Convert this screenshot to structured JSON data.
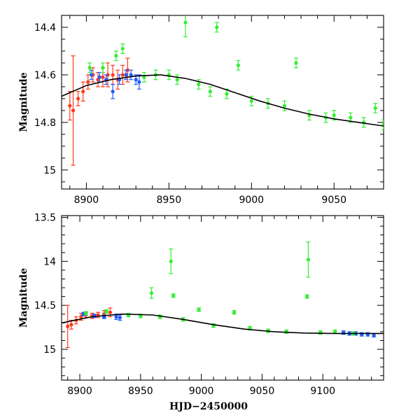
{
  "chart_data": [
    {
      "type": "scatter",
      "panel": "top",
      "xlabel": "",
      "ylabel": "Magnitude",
      "xlim": [
        8885,
        9080
      ],
      "ylim": [
        15.08,
        14.35
      ],
      "xticks": [
        8900,
        8950,
        9000,
        9050
      ],
      "yticks": [
        14.4,
        14.6,
        14.8,
        15
      ],
      "colors": {
        "red": "#ff3a1c",
        "blue": "#1f5cff",
        "green": "#33ee33",
        "model": "#000000"
      },
      "model_curve": {
        "x": [
          8885,
          8900,
          8915,
          8930,
          8945,
          8960,
          8975,
          8990,
          9005,
          9020,
          9035,
          9050,
          9065,
          9080
        ],
        "y": [
          14.69,
          14.645,
          14.62,
          14.605,
          14.6,
          14.615,
          14.64,
          14.675,
          14.71,
          14.74,
          14.765,
          14.785,
          14.8,
          14.815
        ]
      },
      "series": [
        {
          "name": "red",
          "color": "#ff3a1c",
          "x": [
            8890,
            8892,
            8895,
            8898,
            8901,
            8904,
            8907,
            8910,
            8913,
            8916,
            8919,
            8922,
            8925
          ],
          "y": [
            14.73,
            14.75,
            14.7,
            14.67,
            14.63,
            14.6,
            14.62,
            14.61,
            14.6,
            14.6,
            14.62,
            14.6,
            14.58
          ],
          "err": [
            0.06,
            0.23,
            0.03,
            0.04,
            0.03,
            0.03,
            0.03,
            0.04,
            0.05,
            0.04,
            0.04,
            0.04,
            0.05
          ]
        },
        {
          "name": "blue",
          "color": "#1f5cff",
          "x": [
            8903,
            8908,
            8912,
            8916,
            8920,
            8924,
            8927,
            8930,
            8932
          ],
          "y": [
            14.6,
            14.61,
            14.62,
            14.67,
            14.62,
            14.6,
            14.6,
            14.62,
            14.63
          ],
          "err": [
            0.02,
            0.02,
            0.02,
            0.03,
            0.02,
            0.02,
            0.02,
            0.02,
            0.03
          ]
        },
        {
          "name": "green",
          "color": "#33ee33",
          "x": [
            8902,
            8910,
            8918,
            8922,
            8935,
            8942,
            8950,
            8955,
            8960,
            8968,
            8975,
            8979,
            8985,
            8992,
            9000,
            9010,
            9020,
            9027,
            9035,
            9045,
            9050,
            9060,
            9068,
            9075,
            9080
          ],
          "y": [
            14.57,
            14.57,
            14.52,
            14.49,
            14.61,
            14.6,
            14.6,
            14.62,
            14.38,
            14.64,
            14.67,
            14.4,
            14.68,
            14.56,
            14.71,
            14.72,
            14.73,
            14.55,
            14.77,
            14.78,
            14.77,
            14.78,
            14.8,
            14.74,
            14.81
          ],
          "err": [
            0.02,
            0.02,
            0.02,
            0.02,
            0.02,
            0.02,
            0.02,
            0.02,
            0.06,
            0.02,
            0.02,
            0.02,
            0.02,
            0.02,
            0.02,
            0.02,
            0.02,
            0.02,
            0.02,
            0.02,
            0.02,
            0.02,
            0.02,
            0.02,
            0.02
          ]
        }
      ]
    },
    {
      "type": "scatter",
      "panel": "bottom",
      "xlabel": "HJD−2450000",
      "ylabel": "Magnitude",
      "xlim": [
        8885,
        9150
      ],
      "ylim": [
        15.35,
        13.48
      ],
      "xticks": [
        8900,
        8950,
        9000,
        9050,
        9100
      ],
      "yticks": [
        13.5,
        14,
        14.5,
        15
      ],
      "colors": {
        "red": "#ff3a1c",
        "blue": "#1f5cff",
        "green": "#33ee33",
        "model": "#000000"
      },
      "model_curve": {
        "x": [
          8885,
          8910,
          8935,
          8960,
          8985,
          9010,
          9035,
          9060,
          9085,
          9110,
          9130,
          9150
        ],
        "y": [
          14.7,
          14.63,
          14.6,
          14.61,
          14.66,
          14.72,
          14.77,
          14.8,
          14.815,
          14.82,
          14.82,
          14.82
        ]
      },
      "series": [
        {
          "name": "red",
          "color": "#ff3a1c",
          "x": [
            8890,
            8893,
            8897,
            8901,
            8905,
            8910,
            8915,
            8920,
            8925
          ],
          "y": [
            14.74,
            14.72,
            14.67,
            14.63,
            14.61,
            14.62,
            14.61,
            14.6,
            14.58
          ],
          "err": [
            0.24,
            0.05,
            0.04,
            0.04,
            0.03,
            0.03,
            0.03,
            0.04,
            0.05
          ]
        },
        {
          "name": "blue",
          "color": "#1f5cff",
          "x": [
            8903,
            8912,
            8920,
            8930,
            8933,
            9117,
            9122,
            9127,
            9132,
            9137,
            9142
          ],
          "y": [
            14.6,
            14.62,
            14.63,
            14.63,
            14.64,
            14.81,
            14.82,
            14.82,
            14.83,
            14.83,
            14.84
          ],
          "err": [
            0.02,
            0.02,
            0.02,
            0.03,
            0.03,
            0.02,
            0.02,
            0.02,
            0.02,
            0.02,
            0.02
          ]
        },
        {
          "name": "green",
          "color": "#33ee33",
          "x": [
            8905,
            8922,
            8940,
            8950,
            8959,
            8966,
            8975,
            8977,
            8985,
            8998,
            9010,
            9027,
            9040,
            9055,
            9070,
            9087,
            9088,
            9098,
            9110,
            9125
          ],
          "y": [
            14.59,
            14.57,
            14.61,
            14.62,
            14.36,
            14.63,
            14.0,
            14.39,
            14.66,
            14.55,
            14.73,
            14.58,
            14.76,
            14.79,
            14.8,
            14.4,
            13.98,
            14.81,
            14.8,
            14.82
          ],
          "err": [
            0.02,
            0.02,
            0.02,
            0.02,
            0.06,
            0.02,
            0.14,
            0.02,
            0.02,
            0.02,
            0.02,
            0.02,
            0.02,
            0.02,
            0.02,
            0.02,
            0.2,
            0.02,
            0.02,
            0.02
          ]
        }
      ]
    }
  ]
}
